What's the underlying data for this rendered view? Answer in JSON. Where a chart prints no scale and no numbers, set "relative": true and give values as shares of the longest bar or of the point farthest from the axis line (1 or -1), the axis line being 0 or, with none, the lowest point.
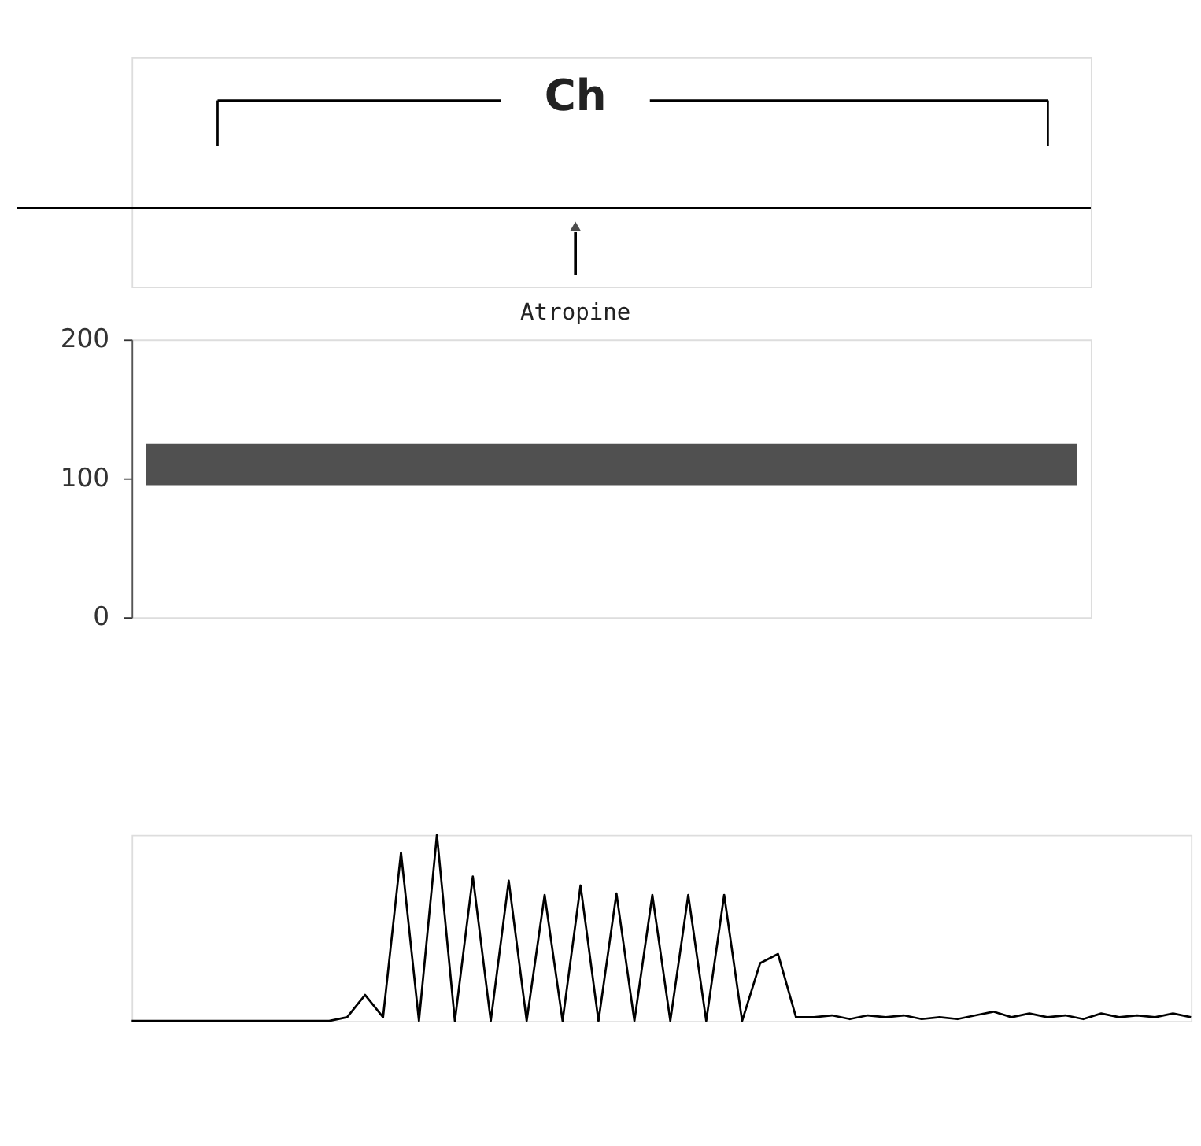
{
  "chart_data": [
    {
      "type": "bar",
      "ylim": [
        0,
        200
      ],
      "yticks": [
        0,
        100,
        200
      ],
      "annotations": [
        "Ch",
        "Atropine"
      ],
      "categories": [
        null
      ],
      "base": [
        95
      ],
      "values": [
        30
      ],
      "color": "#505050"
    },
    {
      "type": "line",
      "relative": true,
      "color": "#000000",
      "categories": [
        null,
        null,
        null,
        null,
        null,
        null,
        null,
        null,
        null,
        null,
        null,
        null,
        null,
        null,
        null,
        null,
        null,
        null,
        null,
        null,
        null,
        null,
        null,
        null,
        null,
        null,
        null,
        null,
        null,
        null,
        null,
        null,
        null,
        null,
        null,
        null,
        null,
        null,
        null,
        null,
        null,
        null,
        null,
        null,
        null,
        null,
        null,
        null,
        null,
        null,
        null,
        null,
        null,
        null,
        null,
        null,
        null,
        null,
        null,
        null
      ],
      "values": [
        0,
        0,
        0,
        0,
        0,
        0,
        0,
        0,
        0,
        0,
        0,
        0,
        0.02,
        0.14,
        0.02,
        0.905,
        0,
        1,
        0,
        0.776,
        0,
        0.754,
        0,
        0.677,
        0,
        0.728,
        0,
        0.685,
        0,
        0.677,
        0,
        0.677,
        0,
        0.677,
        0,
        0.31,
        0.36,
        0.02,
        0.02,
        0.03,
        0.01,
        0.03,
        0.02,
        0.03,
        0.01,
        0.02,
        0.01,
        0.03,
        0.05,
        0.02,
        0.04,
        0.02,
        0.03,
        0.01,
        0.04,
        0.02,
        0.03,
        0.02,
        0.04,
        0.02
      ]
    }
  ]
}
